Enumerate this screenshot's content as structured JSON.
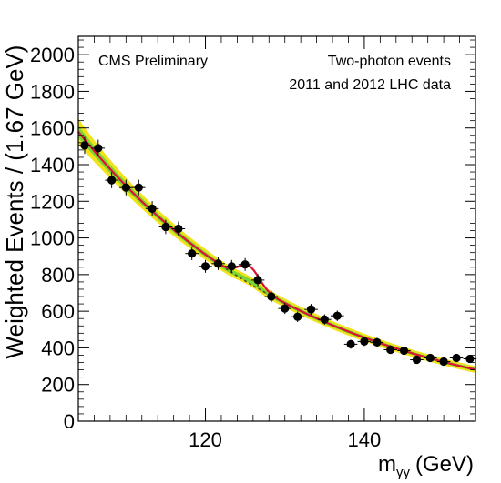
{
  "chart_data": {
    "type": "scatter",
    "annotations": {
      "left": "CMS Preliminary",
      "right_line1": "Two-photon events",
      "right_line2": "2011 and 2012 LHC data"
    },
    "xlabel": "m",
    "xlabel_sub": "γγ",
    "xlabel_unit": "(GeV)",
    "ylabel": "Weighted Events / (1.67 GeV)",
    "xlim": [
      104,
      154
    ],
    "ylim": [
      0,
      2100
    ],
    "x_ticks": [
      120,
      140
    ],
    "y_ticks": [
      0,
      200,
      400,
      600,
      800,
      1000,
      1200,
      1400,
      1600,
      1800,
      2000
    ],
    "colors": {
      "fit": "#dd1133",
      "band_outer": "#f2e21a",
      "band_inner": "#7cd636",
      "background": "#555511",
      "points": "#000000"
    },
    "series": [
      {
        "values": [
          {
            "x": 104.8,
            "y": 1505
          },
          {
            "x": 106.5,
            "y": 1490
          },
          {
            "x": 108.2,
            "y": 1315
          },
          {
            "x": 110.0,
            "y": 1275
          },
          {
            "x": 111.6,
            "y": 1275
          },
          {
            "x": 113.3,
            "y": 1160
          },
          {
            "x": 115.0,
            "y": 1060
          },
          {
            "x": 116.6,
            "y": 1050
          },
          {
            "x": 118.3,
            "y": 915
          },
          {
            "x": 120.0,
            "y": 845
          },
          {
            "x": 121.6,
            "y": 860
          },
          {
            "x": 123.3,
            "y": 845
          },
          {
            "x": 125.0,
            "y": 855
          },
          {
            "x": 126.6,
            "y": 770
          },
          {
            "x": 128.3,
            "y": 680
          },
          {
            "x": 130.0,
            "y": 615
          },
          {
            "x": 131.6,
            "y": 570
          },
          {
            "x": 133.3,
            "y": 610
          },
          {
            "x": 135.0,
            "y": 555
          },
          {
            "x": 136.6,
            "y": 575
          },
          {
            "x": 138.3,
            "y": 420
          },
          {
            "x": 140.0,
            "y": 435
          },
          {
            "x": 141.6,
            "y": 430
          },
          {
            "x": 143.3,
            "y": 390
          },
          {
            "x": 145.0,
            "y": 385
          },
          {
            "x": 146.6,
            "y": 335
          },
          {
            "x": 148.3,
            "y": 345
          },
          {
            "x": 150.0,
            "y": 325
          },
          {
            "x": 151.6,
            "y": 345
          },
          {
            "x": 153.3,
            "y": 340
          }
        ]
      }
    ],
    "background_model": {
      "a": 1580,
      "b": 0.0345,
      "x0": 104
    },
    "signal_model": {
      "mass": 125.5,
      "amplitude": 95,
      "sigma": 1.3
    },
    "band_widths": {
      "inner": 12,
      "outer": 26
    }
  }
}
